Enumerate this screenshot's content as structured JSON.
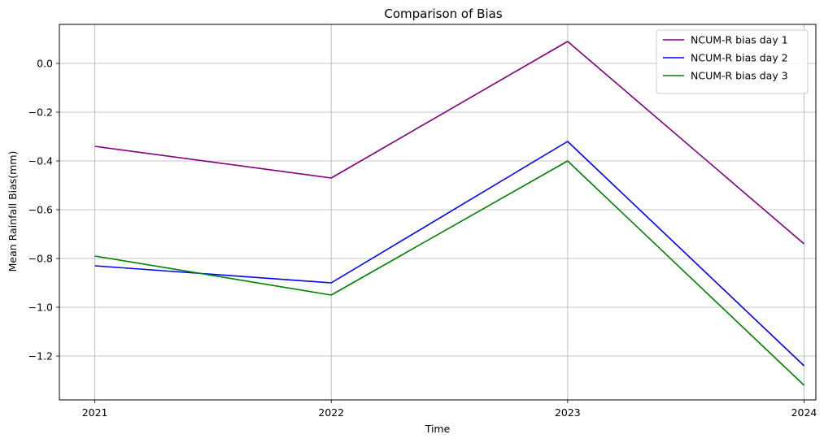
{
  "chart_data": {
    "type": "line",
    "title": "Comparison of Bias",
    "xlabel": "Time",
    "ylabel": "Mean Rainfall Bias(mm)",
    "categories": [
      "2021",
      "2022",
      "2023",
      "2024"
    ],
    "x": [
      2021,
      2022,
      2023,
      2024
    ],
    "xlim": [
      2020.85,
      2024.05
    ],
    "ylim": [
      -1.38,
      0.16
    ],
    "yticks": [
      0.0,
      -0.2,
      -0.4,
      -0.6,
      -0.8,
      -1.0,
      -1.2
    ],
    "ytick_labels": [
      "0.0",
      "−0.2",
      "−0.4",
      "−0.6",
      "−0.8",
      "−1.0",
      "−1.2"
    ],
    "grid": true,
    "legend_position": "top-right",
    "series": [
      {
        "name": "NCUM-R bias day 1",
        "color": "#800080",
        "values": [
          -0.34,
          -0.47,
          0.09,
          -0.74
        ]
      },
      {
        "name": "NCUM-R bias day 2",
        "color": "#0000ff",
        "values": [
          -0.83,
          -0.9,
          -0.32,
          -1.24
        ]
      },
      {
        "name": "NCUM-R bias day 3",
        "color": "#008000",
        "values": [
          -0.79,
          -0.95,
          -0.4,
          -1.32
        ]
      }
    ]
  }
}
